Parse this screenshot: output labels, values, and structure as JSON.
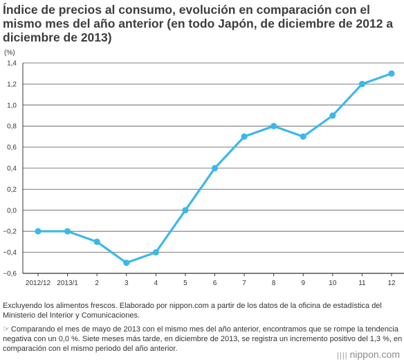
{
  "chart_data": {
    "type": "line",
    "title": "Índice de precios al consumo, evolución en comparación con el mismo mes del año anterior (en todo Japón, de diciembre de 2012 a diciembre de 2013)",
    "ylabel": "(%)",
    "xlabel": "",
    "categories": [
      "2012/12",
      "2013/1",
      "2",
      "3",
      "4",
      "5",
      "6",
      "7",
      "8",
      "9",
      "10",
      "11",
      "12"
    ],
    "values": [
      -0.2,
      -0.2,
      -0.3,
      -0.5,
      -0.4,
      0.0,
      0.4,
      0.7,
      0.8,
      0.7,
      0.9,
      1.2,
      1.3
    ],
    "ylim": [
      -0.6,
      1.4
    ],
    "yticks": [
      "1,4",
      "1,2",
      "1,0",
      "0,8",
      "0,6",
      "0,4",
      "0,2",
      "0,0",
      "−0,2",
      "−0,4",
      "−0,6"
    ],
    "grid": true,
    "line_color": "#3bb8ea"
  },
  "notes": {
    "source": "Excluyendo los alimentos frescos. Elaborado por nippon.com a partir de los datos de la oficina de estadística del Ministerio del Interior y Comunicaciones.",
    "icon": "pointing-hand-icon",
    "icon_glyph": "☞",
    "comment": "Comparando el mes de mayo de 2013 con el mismo mes del año anterior, encontramos que se rompe la tendencia negativa con un 0,0 %. Siete meses más tarde, en diciembre de 2013, se registra un incremento positivo del 1,3 %, en comparación con el mismo periodo del año anterior."
  },
  "brand": {
    "mark": "||||",
    "name": "nippon.com"
  }
}
